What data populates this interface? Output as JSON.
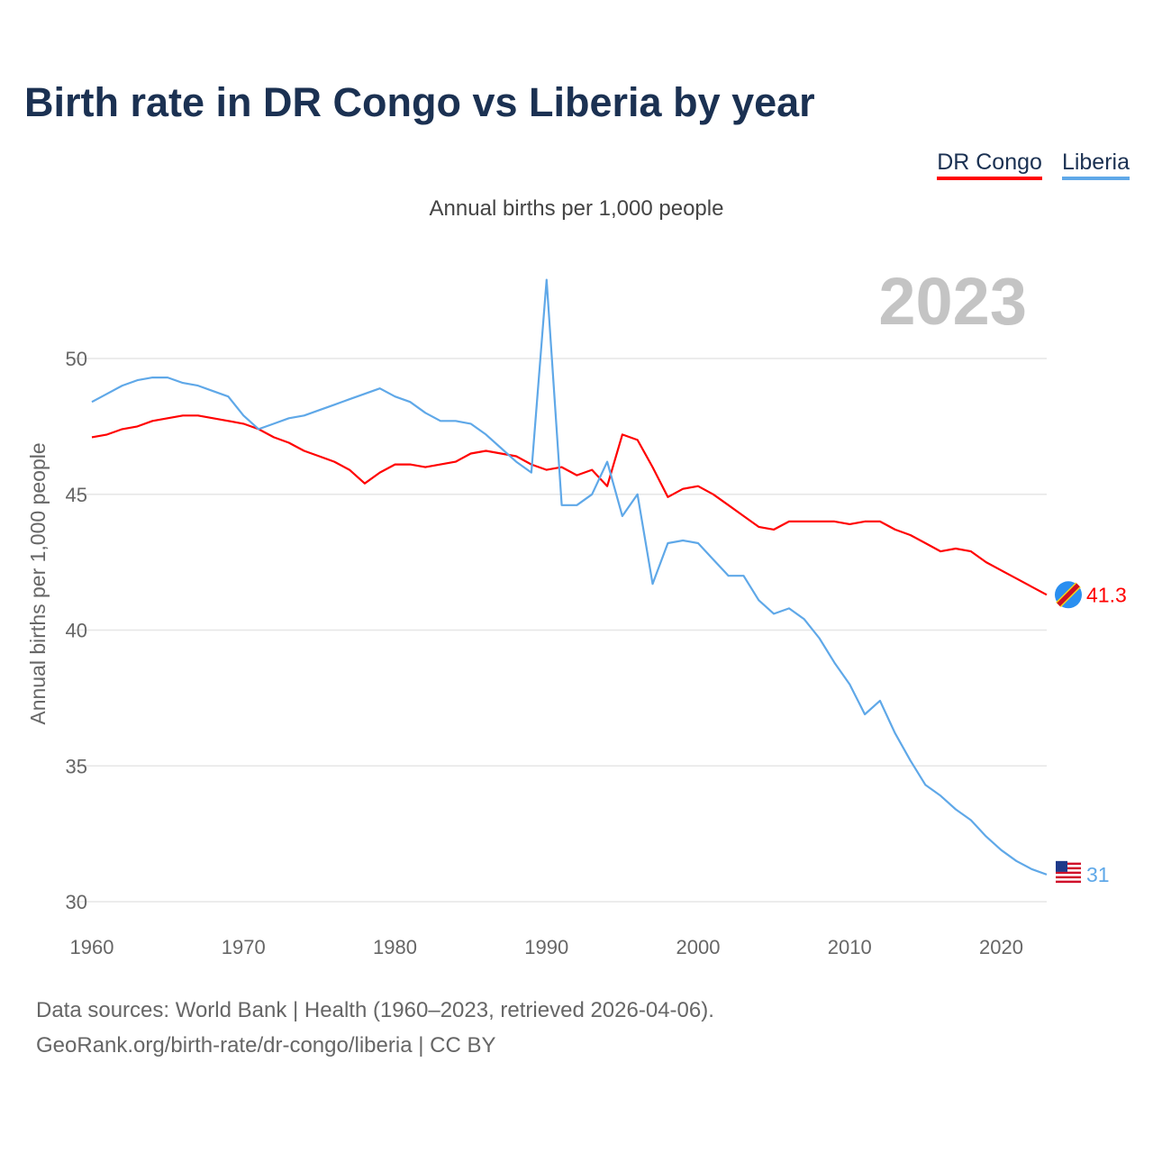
{
  "title": "Birth rate in DR Congo vs Liberia by year",
  "legend": [
    {
      "name": "DR Congo",
      "color": "#ff0000"
    },
    {
      "name": "Liberia",
      "color": "#5fa8e8"
    }
  ],
  "subtitle": "Annual births per 1,000 people",
  "year_label": "2023",
  "sources": [
    "Data sources: World Bank | Health (1960–2023, retrieved 2026-04-06).",
    "GeoRank.org/birth-rate/dr-congo/liberia | CC BY"
  ],
  "chart_data": {
    "type": "line",
    "title": "Birth rate in DR Congo vs Liberia by year",
    "ylabel": "Annual births per 1,000 people",
    "xlabel": "",
    "xlim": [
      1960,
      2023
    ],
    "ylim": [
      30,
      53.3
    ],
    "yticks": [
      30,
      35,
      40,
      45,
      50
    ],
    "xticks": [
      1960,
      1970,
      1980,
      1990,
      2000,
      2010,
      2020
    ],
    "grid": true,
    "legend_position": "top-right",
    "x_start": 1960,
    "series": [
      {
        "name": "DR Congo",
        "color": "#ff0000",
        "end_label": "41.3",
        "values": [
          47.1,
          47.2,
          47.4,
          47.5,
          47.7,
          47.8,
          47.9,
          47.9,
          47.8,
          47.7,
          47.6,
          47.4,
          47.1,
          46.9,
          46.6,
          46.4,
          46.2,
          45.9,
          45.4,
          45.8,
          46.1,
          46.1,
          46.0,
          46.1,
          46.2,
          46.5,
          46.6,
          46.5,
          46.4,
          46.1,
          45.9,
          46.0,
          45.7,
          45.9,
          45.3,
          47.2,
          47.0,
          46.0,
          44.9,
          45.2,
          45.3,
          45.0,
          44.6,
          44.2,
          43.8,
          43.7,
          44.0,
          44.0,
          44.0,
          44.0,
          43.9,
          44.0,
          44.0,
          43.7,
          43.5,
          43.2,
          42.9,
          43.0,
          42.9,
          42.5,
          42.2,
          41.9,
          41.6,
          41.3
        ]
      },
      {
        "name": "Liberia",
        "color": "#5fa8e8",
        "end_label": "31",
        "values": [
          48.4,
          48.7,
          49.0,
          49.2,
          49.3,
          49.3,
          49.1,
          49.0,
          48.8,
          48.6,
          47.9,
          47.4,
          47.6,
          47.8,
          47.9,
          48.1,
          48.3,
          48.5,
          48.7,
          48.9,
          48.6,
          48.4,
          48.0,
          47.7,
          47.7,
          47.6,
          47.2,
          46.7,
          46.2,
          45.8,
          52.9,
          44.6,
          44.6,
          45.0,
          46.2,
          44.2,
          45.0,
          41.7,
          43.2,
          43.3,
          43.2,
          42.6,
          42.0,
          42.0,
          41.1,
          40.6,
          40.8,
          40.4,
          39.7,
          38.8,
          38.0,
          36.9,
          37.4,
          36.2,
          35.2,
          34.3,
          33.9,
          33.4,
          33.0,
          32.4,
          31.9,
          31.5,
          31.2,
          31.0
        ]
      }
    ]
  }
}
